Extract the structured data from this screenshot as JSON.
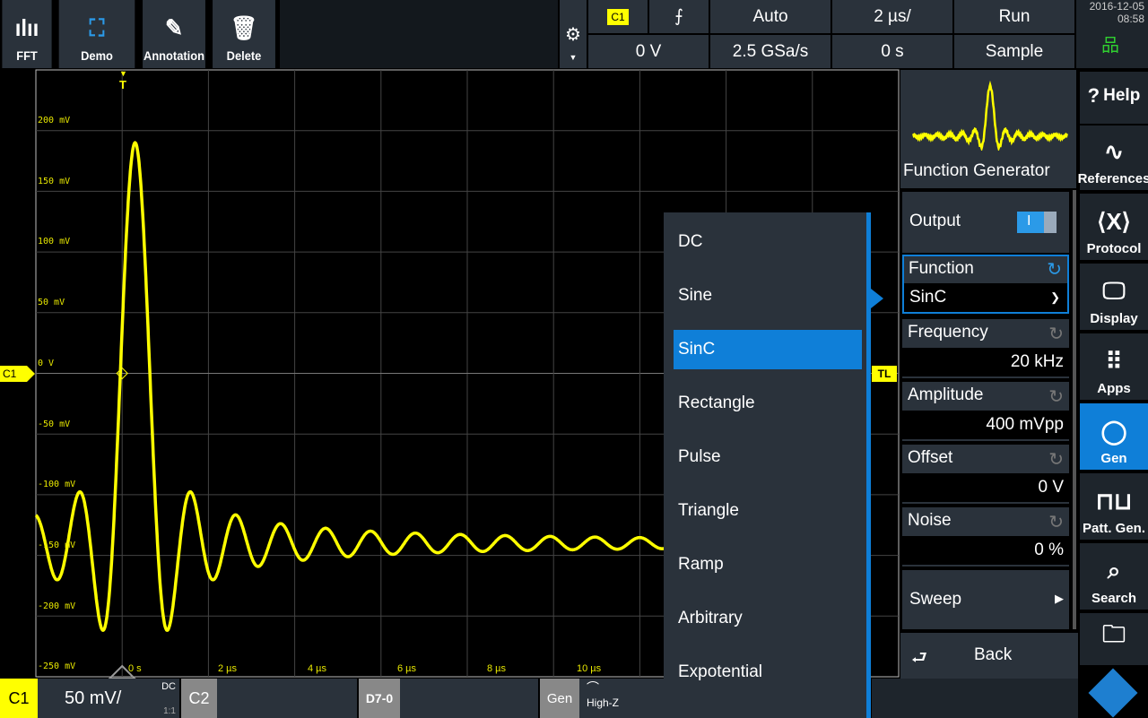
{
  "toolbar": {
    "items": [
      {
        "label": "FFT",
        "icon": "fft-icon"
      },
      {
        "label": "Demo",
        "icon": "demo-icon"
      },
      {
        "label": "Annotation",
        "icon": "pencil-icon"
      },
      {
        "label": "Delete",
        "icon": "trash-icon"
      }
    ]
  },
  "trigger": {
    "channel": "C1",
    "slope": "⨍",
    "mode": "Auto",
    "timebase": "2 µs/",
    "run": "Run",
    "level": "0 V",
    "sample_rate": "2.5 GSa/s",
    "position": "0 s",
    "acquisition": "Sample"
  },
  "datetime": {
    "date": "2016-12-05",
    "time": "08:58"
  },
  "graticule": {
    "y_labels": [
      "200 mV",
      "150 mV",
      "100 mV",
      "50 mV",
      "0 V",
      "-50 mV",
      "-100 mV",
      "-150 mV",
      "-200 mV",
      "-250 mV"
    ],
    "x_labels": [
      "0 s",
      "2 µs",
      "4 µs",
      "6 µs",
      "8 µs",
      "10 µs"
    ],
    "channel_marker": "C1",
    "trigger_marker": "T",
    "trigger_level_marker": "TL",
    "trace_color": "#ffff00"
  },
  "waveform": {
    "type": "sinc",
    "peak_mv": 190,
    "baseline_mv": -140,
    "period_us": 1.04
  },
  "menu": {
    "items": [
      "DC",
      "Sine",
      "SinC",
      "Rectangle",
      "Pulse",
      "Triangle",
      "Ramp",
      "Arbitrary",
      "Expotential"
    ],
    "selected": "SinC"
  },
  "panel": {
    "title": "Function Generator",
    "output_label": "Output",
    "output_state": "I",
    "output_on": true,
    "function_label": "Function",
    "function_value": "SinC",
    "frequency_label": "Frequency",
    "frequency_value": "20 kHz",
    "amplitude_label": "Amplitude",
    "amplitude_value": "400 mVpp",
    "offset_label": "Offset",
    "offset_value": "0 V",
    "noise_label": "Noise",
    "noise_value": "0 %",
    "sweep_label": "Sweep",
    "back_label": "Back"
  },
  "nav": {
    "help": "Help",
    "references": "References",
    "protocol": "Protocol",
    "display": "Display",
    "apps": "Apps",
    "gen": "Gen",
    "patt_gen": "Patt. Gen.",
    "search": "Search"
  },
  "bottom": {
    "c1": "C1",
    "c1_scale": "50 mV/",
    "c1_coupling": "DC",
    "c1_probe": "1:1",
    "c2": "C2",
    "digital": "D7-0",
    "gen": "Gen",
    "gen_load": "High-Z"
  },
  "colors": {
    "accent": "#0f7fd8",
    "trace": "#ffff00",
    "panel": "#2a323b"
  }
}
